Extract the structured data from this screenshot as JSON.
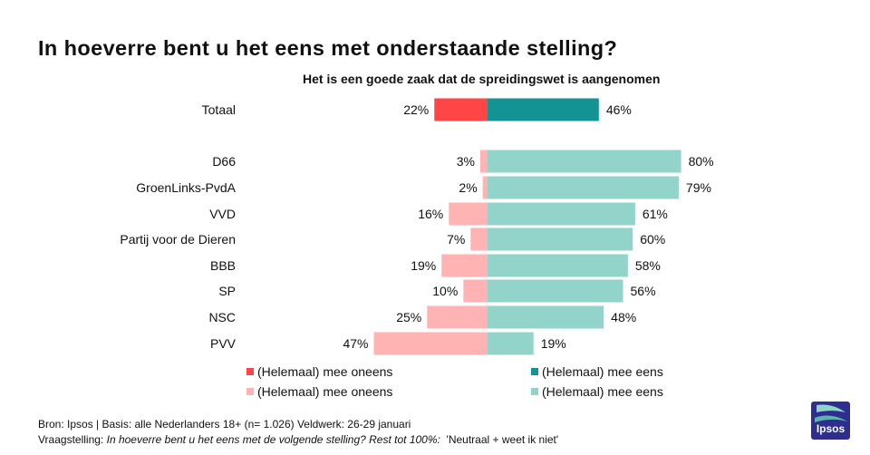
{
  "title": "In hoeverre bent u het eens met onderstaande stelling?",
  "chart_data": {
    "type": "bar",
    "orientation": "diverging-horizontal",
    "subtitle": "Het is een goede zaak dat de spreidingswet is aangenomen",
    "value_format": "percent",
    "categories": [
      "Totaal",
      "D66",
      "GroenLinks-PvdA",
      "VVD",
      "Partij voor de Dieren",
      "BBB",
      "SP",
      "NSC",
      "PVV"
    ],
    "series": [
      {
        "name": "(Helemaal) mee oneens",
        "direction": "left",
        "values": [
          22,
          3,
          2,
          16,
          7,
          19,
          10,
          25,
          47
        ],
        "colors": [
          "#ff4545",
          "#ffb3b3",
          "#ffb3b3",
          "#ffb3b3",
          "#ffb3b3",
          "#ffb3b3",
          "#ffb3b3",
          "#ffb3b3",
          "#ffb3b3"
        ]
      },
      {
        "name": "(Helemaal) mee eens",
        "direction": "right",
        "values": [
          46,
          80,
          79,
          61,
          60,
          58,
          56,
          48,
          19
        ],
        "colors": [
          "#149394",
          "#92d4ca",
          "#92d4ca",
          "#92d4ca",
          "#92d4ca",
          "#92d4ca",
          "#92d4ca",
          "#92d4ca",
          "#92d4ca"
        ]
      }
    ],
    "legend": {
      "placement": "bottom",
      "items": [
        {
          "label": "(Helemaal) mee oneens",
          "color": "#ff4545"
        },
        {
          "label": "(Helemaal) mee eens",
          "color": "#149394"
        },
        {
          "label": "(Helemaal) mee oneens",
          "color": "#ffb3b3"
        },
        {
          "label": "(Helemaal) mee eens",
          "color": "#92d4ca"
        }
      ]
    },
    "grid": false
  },
  "footer": {
    "source": "Bron: Ipsos | Basis: alle Nederlanders  18+ (n= 1.026) Veldwerk: 26-29 januari",
    "question_prefix": "Vraagstelling: ",
    "question_italic": "In hoeverre  bent u het eens met de volgende  stelling? Rest tot 100%:",
    "question_suffix": "  'Neutraal + weet ik niet'"
  },
  "logo": {
    "text": "Ipsos",
    "color": "#2e2e8f"
  }
}
